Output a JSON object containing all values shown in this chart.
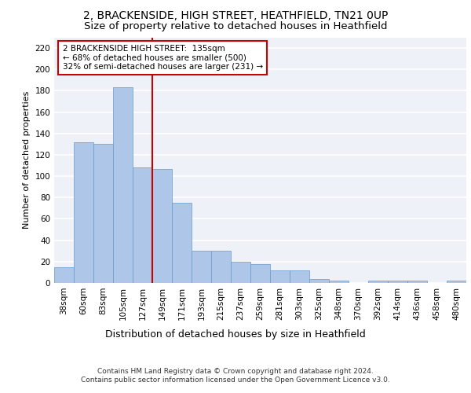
{
  "title1": "2, BRACKENSIDE, HIGH STREET, HEATHFIELD, TN21 0UP",
  "title2": "Size of property relative to detached houses in Heathfield",
  "xlabel": "Distribution of detached houses by size in Heathfield",
  "ylabel": "Number of detached properties",
  "categories": [
    "38sqm",
    "60sqm",
    "83sqm",
    "105sqm",
    "127sqm",
    "149sqm",
    "171sqm",
    "193sqm",
    "215sqm",
    "237sqm",
    "259sqm",
    "281sqm",
    "303sqm",
    "325sqm",
    "348sqm",
    "370sqm",
    "392sqm",
    "414sqm",
    "436sqm",
    "458sqm",
    "480sqm"
  ],
  "values": [
    15,
    132,
    130,
    183,
    108,
    107,
    75,
    30,
    30,
    20,
    18,
    12,
    12,
    4,
    2,
    0,
    2,
    2,
    2,
    0,
    2
  ],
  "bar_color": "#aec6e8",
  "bar_edge_color": "#6699cc",
  "marker_line_color": "#cc0000",
  "annotation_text_line1": "2 BRACKENSIDE HIGH STREET:  135sqm",
  "annotation_text_line2": "← 68% of detached houses are smaller (500)",
  "annotation_text_line3": "32% of semi-detached houses are larger (231) →",
  "annotation_box_facecolor": "#ffffff",
  "annotation_box_edgecolor": "#cc0000",
  "ylim": [
    0,
    230
  ],
  "yticks": [
    0,
    20,
    40,
    60,
    80,
    100,
    120,
    140,
    160,
    180,
    200,
    220
  ],
  "footnote_line1": "Contains HM Land Registry data © Crown copyright and database right 2024.",
  "footnote_line2": "Contains public sector information licensed under the Open Government Licence v3.0.",
  "bg_color": "#eef2f8",
  "grid_color": "#ffffff",
  "title1_fontsize": 10,
  "title2_fontsize": 9.5,
  "ylabel_fontsize": 8,
  "xlabel_fontsize": 9,
  "tick_fontsize": 7.5,
  "annotation_fontsize": 7.5,
  "footnote_fontsize": 6.5,
  "marker_bar_index": 4
}
